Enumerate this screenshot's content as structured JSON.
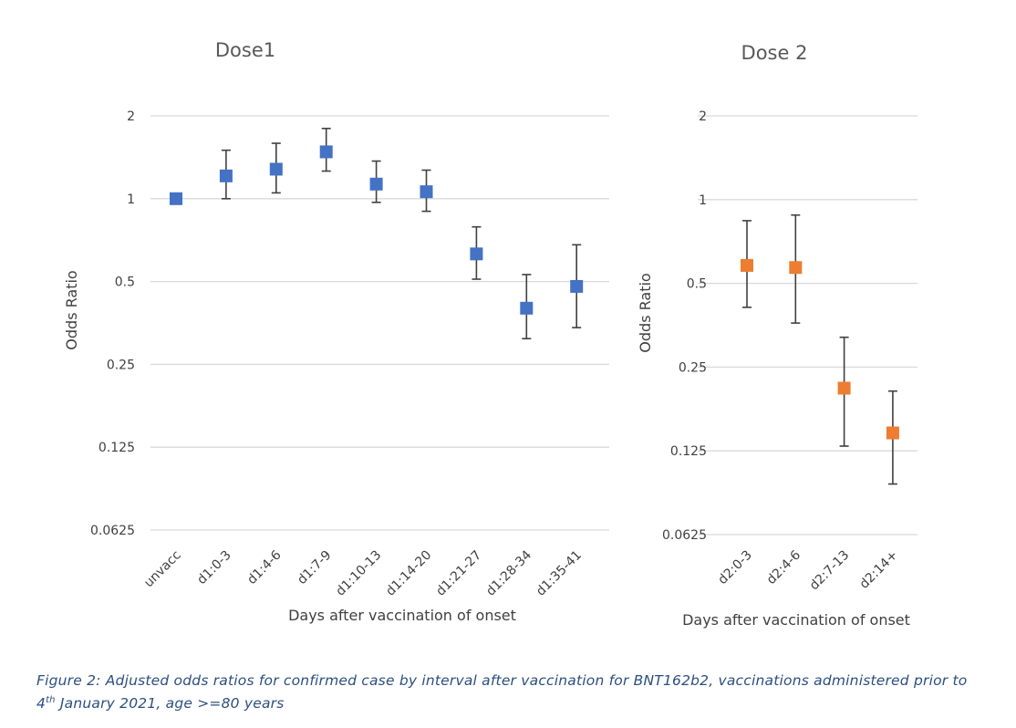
{
  "chart_data": [
    {
      "type": "scatter",
      "title": "Dose1",
      "xlabel": "Days after vaccination of onset",
      "ylabel": "Odds Ratio",
      "yscale": "log2",
      "yticks": [
        2,
        1,
        0.5,
        0.25,
        0.125,
        0.0625
      ],
      "ytick_labels": [
        "2",
        "1",
        "0.5",
        "0.25",
        "0.125",
        "0.0625"
      ],
      "ylim": [
        0.0625,
        2
      ],
      "grid": true,
      "color": "#4472c4",
      "categories": [
        "unvacc",
        "d1:0-3",
        "d1:4-6",
        "d1:7-9",
        "d1:10-13",
        "d1:14-20",
        "d1:21-27",
        "d1:28-34",
        "d1:35-41",
        "d1:"
      ],
      "values": [
        1.0,
        1.21,
        1.28,
        1.48,
        1.13,
        1.06,
        0.63,
        0.4,
        0.48,
        null
      ],
      "lower": [
        null,
        1.0,
        1.05,
        1.26,
        0.97,
        0.9,
        0.51,
        0.31,
        0.34,
        null
      ],
      "upper": [
        null,
        1.5,
        1.59,
        1.8,
        1.37,
        1.27,
        0.79,
        0.53,
        0.68,
        null
      ]
    },
    {
      "type": "scatter",
      "title": "Dose 2",
      "xlabel": "Days after vaccination of onset",
      "ylabel": "Odds Ratio",
      "yscale": "log2",
      "yticks": [
        2,
        1,
        0.5,
        0.25,
        0.125,
        0.0625
      ],
      "ytick_labels": [
        "2",
        "1",
        "0.5",
        "0.25",
        "0.125",
        "0.0625"
      ],
      "ylim": [
        0.0625,
        2
      ],
      "grid": true,
      "color": "#ed7d31",
      "categories": [
        "d2:0-3",
        "d2:4-6",
        "d2:7-13",
        "d2:14+"
      ],
      "values": [
        0.58,
        0.57,
        0.21,
        0.145
      ],
      "lower": [
        0.41,
        0.36,
        0.13,
        0.095
      ],
      "upper": [
        0.84,
        0.88,
        0.32,
        0.205
      ]
    }
  ],
  "caption": {
    "text_before": "Figure 2: Adjusted odds ratios for confirmed case by interval after vaccination for BNT162b2, vaccinations administered prior to 4",
    "superscript": "th",
    "text_after": " January 2021, age >=80 years"
  }
}
